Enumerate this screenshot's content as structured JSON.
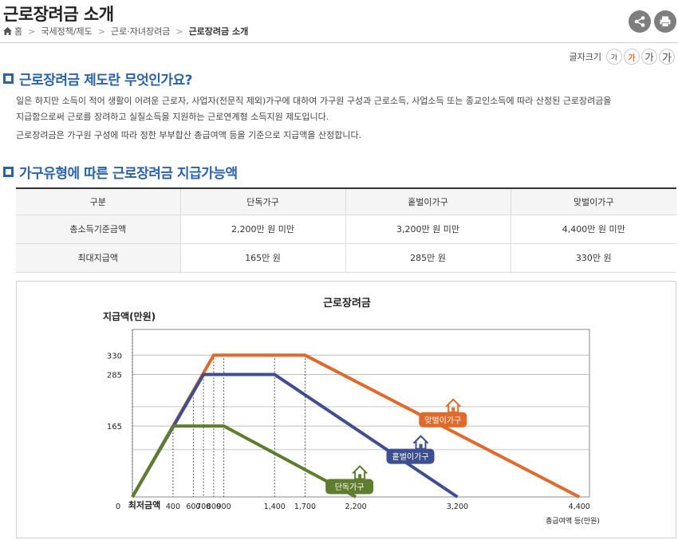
{
  "header": {
    "title": "근로장려금 소개",
    "breadcrumb": [
      "홈",
      "국세정책/제도",
      "근로·자녀장려금",
      "근로장려금 소개"
    ]
  },
  "actions": {
    "share_icon": "share-icon",
    "print_icon": "print-icon"
  },
  "font_size": {
    "label": "글자크기",
    "options": [
      "가",
      "가",
      "가",
      "가"
    ]
  },
  "sections": {
    "intro": {
      "heading": "근로장려금 제도란 무엇인가요?",
      "para1_line1": "일은 하지만 소득이 적어 생활이 어려운 근로자, 사업자(전문직 제외)가구에 대하여 가구원 구성과 근로소득, 사업소득 또는 종교인소득에 따라 산정된 근로장려금을",
      "para1_line2": "지급함으로써 근로를 장려하고 실질소득을 지원하는 근로연계형 소득지원 제도입니다.",
      "para2": "근로장려금은 가구원 구성에 따라 정한 부부합산 총급여액 등을 기준으로 지급액을 산정합니다."
    },
    "table_section": {
      "heading": "가구유형에 따른 근로장려금 지급가능액"
    }
  },
  "table": {
    "headers": [
      "구분",
      "단독가구",
      "홑벌이가구",
      "맞벌이가구"
    ],
    "rows": [
      [
        "총소득기준금액",
        "2,200만 원 미만",
        "3,200만 원 미만",
        "4,400만 원 미만"
      ],
      [
        "최대지급액",
        "165만 원",
        "285만 원",
        "330만 원"
      ]
    ]
  },
  "chart_data": {
    "type": "line",
    "title": "근로장려금",
    "ylabel": "지급액(만원)",
    "xlabel": "총급여액 등(만원)",
    "origin_label": "0",
    "min_label": "최저금액",
    "x_ticks": [
      400,
      600,
      700,
      800,
      900,
      1400,
      1700,
      2200,
      3200,
      4400
    ],
    "x_tick_labels": [
      "400",
      "600",
      "700",
      "800",
      "900",
      "1,400",
      "1,700",
      "2,200",
      "3,200",
      "4,400"
    ],
    "y_ticks": [
      165,
      285,
      330
    ],
    "y_tick_labels": [
      "165",
      "285",
      "330"
    ],
    "series": [
      {
        "name": "맞벌이가구",
        "color": "#e06a2c",
        "points": [
          [
            0,
            0
          ],
          [
            800,
            330
          ],
          [
            1700,
            330
          ],
          [
            4400,
            0
          ]
        ]
      },
      {
        "name": "홑벌이가구",
        "color": "#3d4f8e",
        "points": [
          [
            0,
            0
          ],
          [
            700,
            285
          ],
          [
            1400,
            285
          ],
          [
            3200,
            0
          ]
        ]
      },
      {
        "name": "단독가구",
        "color": "#5e7d2f",
        "points": [
          [
            0,
            0
          ],
          [
            400,
            165
          ],
          [
            900,
            165
          ],
          [
            2200,
            0
          ]
        ]
      }
    ]
  }
}
